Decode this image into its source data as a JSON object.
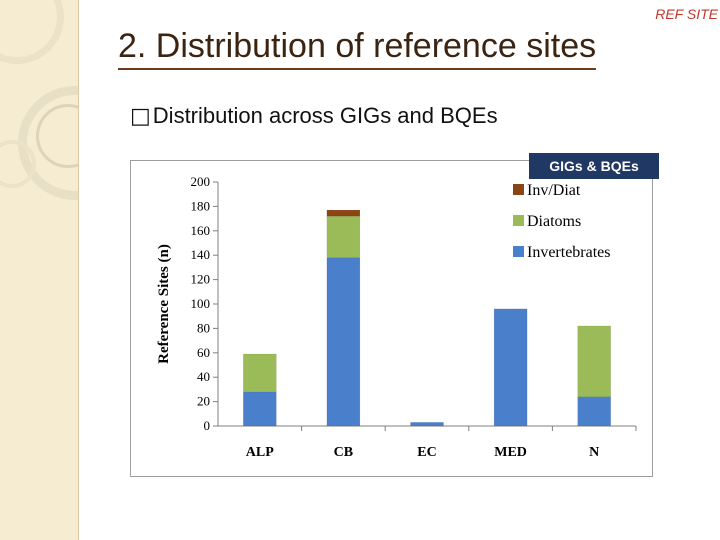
{
  "slide": {
    "corner_label": "REF SITE",
    "title": "2. Distribution of reference sites",
    "bullet_text": "Distribution across GIGs and BQEs"
  },
  "chart_badge": "GIGs & BQEs",
  "colors": {
    "Invertebrates": "#4a7fcb",
    "Diatoms": "#9bbb59",
    "Inv/Diat": "#8b4513"
  },
  "chart_data": {
    "type": "bar",
    "stacked": true,
    "categories": [
      "ALP",
      "CB",
      "EC",
      "MED",
      "N"
    ],
    "series": [
      {
        "name": "Invertebrates",
        "values": [
          28,
          138,
          3,
          96,
          24
        ]
      },
      {
        "name": "Diatoms",
        "values": [
          31,
          34,
          0,
          0,
          58
        ]
      },
      {
        "name": "Inv/Diat",
        "values": [
          0,
          5,
          0,
          0,
          0
        ]
      }
    ],
    "ylabel": "Reference Sites (n)",
    "xlabel": "",
    "ylim": [
      0,
      200
    ],
    "yticks": [
      0,
      20,
      40,
      60,
      80,
      100,
      120,
      140,
      160,
      180,
      200
    ],
    "legend": {
      "order": [
        "Inv/Diat",
        "Diatoms",
        "Invertebrates"
      ],
      "placement": "top-right"
    },
    "grid": false
  }
}
